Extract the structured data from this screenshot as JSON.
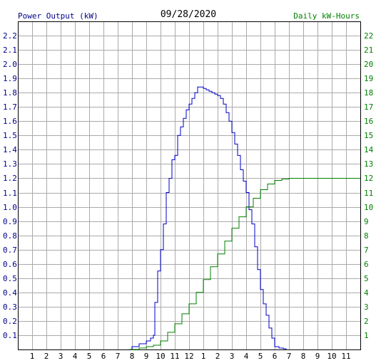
{
  "chart_data": {
    "type": "line",
    "title": "09/28/2020",
    "left_axis_label": "Power Output (kW)",
    "right_axis_label": "Daily kW-Hours",
    "left_axis": {
      "min": 0,
      "max": 2.3,
      "ticks": [
        "0.1",
        "0.2",
        "0.3",
        "0.4",
        "0.5",
        "0.6",
        "0.7",
        "0.8",
        "0.9",
        "1.0",
        "1.1",
        "1.2",
        "1.3",
        "1.4",
        "1.5",
        "1.6",
        "1.7",
        "1.8",
        "1.9",
        "2.0",
        "2.1",
        "2.2"
      ]
    },
    "right_axis": {
      "min": 0,
      "max": 23,
      "ticks": [
        "1",
        "2",
        "3",
        "4",
        "5",
        "6",
        "7",
        "8",
        "9",
        "10",
        "11",
        "12",
        "13",
        "14",
        "15",
        "16",
        "17",
        "18",
        "19",
        "20",
        "21",
        "22"
      ]
    },
    "x_axis": {
      "min_hour": 0,
      "max_hour": 24,
      "ticks": [
        "1",
        "2",
        "3",
        "4",
        "5",
        "6",
        "7",
        "8",
        "9",
        "10",
        "11",
        "12",
        "1",
        "2",
        "3",
        "4",
        "5",
        "6",
        "7",
        "8",
        "9",
        "10",
        "11"
      ]
    },
    "grid": true,
    "colors": {
      "power": "#0000cc",
      "energy": "#008000",
      "grid": "#aaaaaa",
      "left_axis_text": "#00008b",
      "right_axis_text": "#008000"
    },
    "series": [
      {
        "name": "Power Output (kW)",
        "axis": "left",
        "points": [
          [
            7.8,
            0
          ],
          [
            8.0,
            0.02
          ],
          [
            8.5,
            0.04
          ],
          [
            9.0,
            0.06
          ],
          [
            9.3,
            0.08
          ],
          [
            9.5,
            0.1
          ],
          [
            9.6,
            0.33
          ],
          [
            9.8,
            0.55
          ],
          [
            10.0,
            0.7
          ],
          [
            10.2,
            0.88
          ],
          [
            10.4,
            1.1
          ],
          [
            10.6,
            1.2
          ],
          [
            10.8,
            1.33
          ],
          [
            11.0,
            1.36
          ],
          [
            11.2,
            1.5
          ],
          [
            11.4,
            1.56
          ],
          [
            11.6,
            1.62
          ],
          [
            11.8,
            1.68
          ],
          [
            12.0,
            1.72
          ],
          [
            12.2,
            1.76
          ],
          [
            12.4,
            1.8
          ],
          [
            12.6,
            1.84
          ],
          [
            12.8,
            1.84
          ],
          [
            13.0,
            1.83
          ],
          [
            13.2,
            1.82
          ],
          [
            13.4,
            1.81
          ],
          [
            13.6,
            1.8
          ],
          [
            13.8,
            1.79
          ],
          [
            14.0,
            1.78
          ],
          [
            14.2,
            1.76
          ],
          [
            14.4,
            1.72
          ],
          [
            14.6,
            1.66
          ],
          [
            14.8,
            1.6
          ],
          [
            15.0,
            1.52
          ],
          [
            15.2,
            1.44
          ],
          [
            15.4,
            1.36
          ],
          [
            15.6,
            1.26
          ],
          [
            15.8,
            1.18
          ],
          [
            16.0,
            1.1
          ],
          [
            16.2,
            0.98
          ],
          [
            16.4,
            0.88
          ],
          [
            16.6,
            0.72
          ],
          [
            16.8,
            0.56
          ],
          [
            17.0,
            0.42
          ],
          [
            17.2,
            0.32
          ],
          [
            17.4,
            0.24
          ],
          [
            17.6,
            0.15
          ],
          [
            17.8,
            0.08
          ],
          [
            18.0,
            0.02
          ],
          [
            18.3,
            0.01
          ],
          [
            18.6,
            0.005
          ],
          [
            18.8,
            0
          ]
        ]
      },
      {
        "name": "Daily kW-Hours",
        "axis": "right",
        "points": [
          [
            7.8,
            0
          ],
          [
            8.5,
            0.1
          ],
          [
            9.0,
            0.2
          ],
          [
            9.5,
            0.3
          ],
          [
            10.0,
            0.6
          ],
          [
            10.5,
            1.2
          ],
          [
            11.0,
            1.8
          ],
          [
            11.5,
            2.5
          ],
          [
            12.0,
            3.2
          ],
          [
            12.5,
            4.0
          ],
          [
            13.0,
            4.9
          ],
          [
            13.5,
            5.8
          ],
          [
            14.0,
            6.7
          ],
          [
            14.5,
            7.6
          ],
          [
            15.0,
            8.5
          ],
          [
            15.5,
            9.3
          ],
          [
            16.0,
            10.0
          ],
          [
            16.5,
            10.6
          ],
          [
            17.0,
            11.2
          ],
          [
            17.5,
            11.6
          ],
          [
            18.0,
            11.85
          ],
          [
            18.5,
            11.95
          ],
          [
            19.0,
            12.0
          ],
          [
            20.0,
            12.0
          ],
          [
            21.0,
            12.0
          ],
          [
            22.0,
            12.0
          ],
          [
            23.0,
            12.0
          ],
          [
            24.0,
            12.0
          ]
        ]
      }
    ]
  }
}
